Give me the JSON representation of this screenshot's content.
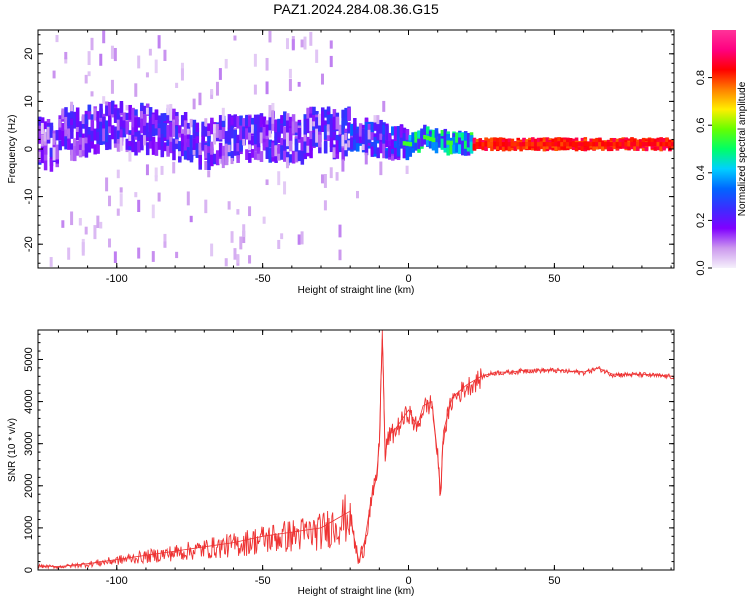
{
  "title": "PAZ1.2024.284.08.36.G15",
  "chart_data": [
    {
      "type": "heatmap",
      "xlabel": "Height of straight line (km)",
      "ylabel": "Frequency (Hz)",
      "xlim": [
        -127,
        91
      ],
      "ylim": [
        -25,
        25
      ],
      "xticks": [
        -100,
        -50,
        0,
        50
      ],
      "yticks": [
        -20,
        -10,
        0,
        10,
        20
      ],
      "colorbar": {
        "label": "Normalized spectral amplitude",
        "range": [
          0,
          1
        ],
        "ticks": [
          "0.0",
          "0.2",
          "0.4",
          "0.6",
          "0.8"
        ],
        "colors": [
          "#f5f0fb",
          "#cc99ee",
          "#8000ff",
          "#3b2dff",
          "#0066ff",
          "#00d0ff",
          "#00ff66",
          "#66ff00",
          "#ffee00",
          "#ff8000",
          "#ff0000",
          "#ff0080",
          "#ff3399"
        ]
      },
      "ridge": [
        {
          "x": -120,
          "freq": 3
        },
        {
          "x": -100,
          "freq": 5
        },
        {
          "x": -90,
          "freq": 4
        },
        {
          "x": -80,
          "freq": 3
        },
        {
          "x": -70,
          "freq": 1
        },
        {
          "x": -60,
          "freq": 2
        },
        {
          "x": -50,
          "freq": 3
        },
        {
          "x": -40,
          "freq": 2
        },
        {
          "x": -30,
          "freq": 4
        },
        {
          "x": -20,
          "freq": 3
        },
        {
          "x": -10,
          "freq": 2
        },
        {
          "x": 0,
          "freq": 1
        },
        {
          "x": 5,
          "freq": 2.5
        },
        {
          "x": 10,
          "freq": 1.5
        },
        {
          "x": 20,
          "freq": 1
        },
        {
          "x": 50,
          "freq": 1
        },
        {
          "x": 80,
          "freq": 1
        },
        {
          "x": 91,
          "freq": 1
        }
      ]
    },
    {
      "type": "line",
      "xlabel": "Height of straight line (km)",
      "ylabel": "SNR (10 * v/v)",
      "xlim": [
        -127,
        91
      ],
      "ylim": [
        0,
        5700
      ],
      "xticks": [
        -100,
        -50,
        0,
        50
      ],
      "yticks": [
        0,
        1000,
        2000,
        3000,
        4000,
        5000
      ],
      "color": "#ee3333",
      "series": [
        {
          "name": "",
          "x": [
            -127,
            -120,
            -110,
            -100,
            -90,
            -80,
            -70,
            -60,
            -50,
            -40,
            -30,
            -25,
            -20,
            -19,
            -17,
            -15,
            -13,
            -11,
            -10,
            -9,
            -8,
            -7,
            -5,
            -3,
            0,
            3,
            5,
            8,
            10,
            11,
            12,
            15,
            20,
            25,
            30,
            35,
            40,
            50,
            60,
            65,
            70,
            80,
            91
          ],
          "y": [
            100,
            80,
            150,
            250,
            350,
            450,
            550,
            650,
            800,
            900,
            1000,
            1200,
            1400,
            900,
            200,
            700,
            1600,
            2200,
            3000,
            5700,
            2700,
            3200,
            3300,
            3500,
            3800,
            3400,
            3900,
            4000,
            2700,
            1800,
            3300,
            4100,
            4400,
            4600,
            4700,
            4700,
            4750,
            4750,
            4700,
            4800,
            4650,
            4650,
            4600
          ]
        }
      ]
    }
  ]
}
